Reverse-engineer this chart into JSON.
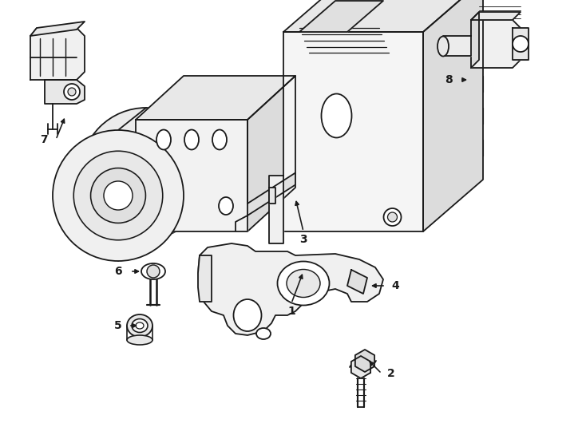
{
  "background_color": "#ffffff",
  "line_color": "#1a1a1a",
  "line_width": 1.3,
  "label_fontsize": 10,
  "label_fontweight": "bold",
  "fig_width": 7.34,
  "fig_height": 5.4,
  "dpi": 100
}
